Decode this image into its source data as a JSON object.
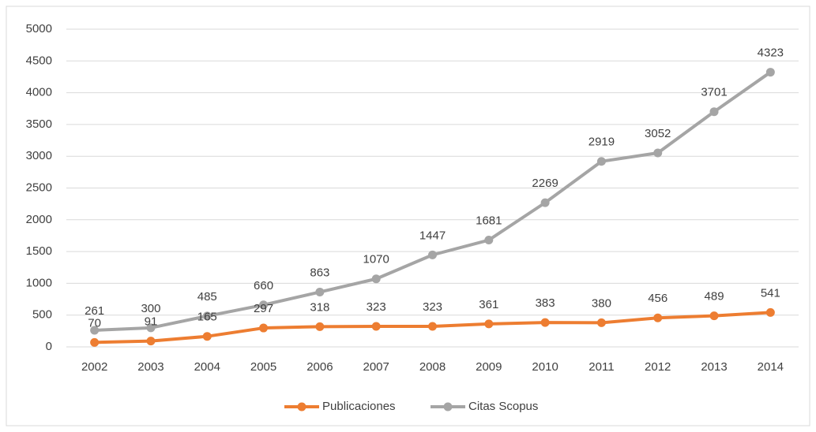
{
  "chart_data": {
    "type": "line",
    "categories": [
      "2002",
      "2003",
      "2004",
      "2005",
      "2006",
      "2007",
      "2008",
      "2009",
      "2010",
      "2011",
      "2012",
      "2013",
      "2014"
    ],
    "series": [
      {
        "name": "Publicaciones",
        "color": "#ed7d31",
        "values": [
          70,
          91,
          165,
          297,
          318,
          323,
          323,
          361,
          383,
          380,
          456,
          489,
          541
        ]
      },
      {
        "name": "Citas Scopus",
        "color": "#a5a5a5",
        "values": [
          261,
          300,
          485,
          660,
          863,
          1070,
          1447,
          1681,
          2269,
          2919,
          3052,
          3701,
          4323
        ]
      }
    ],
    "ylim": [
      0,
      5000
    ],
    "yticks": [
      0,
      500,
      1000,
      1500,
      2000,
      2500,
      3000,
      3500,
      4000,
      4500,
      5000
    ],
    "grid": true,
    "legend": "bottom"
  }
}
